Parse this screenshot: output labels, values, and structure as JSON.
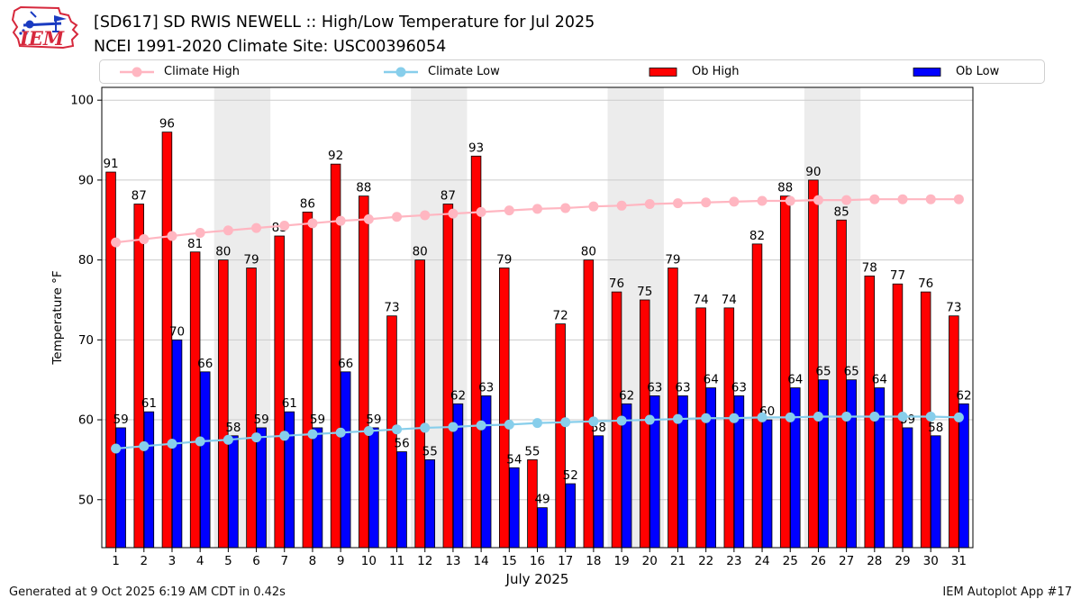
{
  "header": {
    "title_line1": "[SD617] SD RWIS NEWELL :: High/Low Temperature for Jul 2025",
    "title_line2": "NCEI 1991-2020 Climate Site: USC00396054",
    "logo_text": "IEM"
  },
  "legend": [
    {
      "label": "Climate High",
      "type": "line-marker",
      "color": "#ffb6c1"
    },
    {
      "label": "Climate Low",
      "type": "line-marker",
      "color": "#87ceeb"
    },
    {
      "label": "Ob High",
      "type": "swatch",
      "color": "#ff0000"
    },
    {
      "label": "Ob Low",
      "type": "swatch",
      "color": "#0000ff"
    }
  ],
  "chart_data": {
    "type": "bar",
    "title": "[SD617] SD RWIS NEWELL :: High/Low Temperature for Jul 2025",
    "subtitle": "NCEI 1991-2020 Climate Site: USC00396054",
    "xlabel": "July 2025",
    "ylabel": "Temperature °F",
    "ylim": [
      44,
      101.6
    ],
    "yticks": [
      50,
      60,
      70,
      80,
      90,
      100
    ],
    "grid": true,
    "legend_position": "top",
    "x": [
      1,
      2,
      3,
      4,
      5,
      6,
      7,
      8,
      9,
      10,
      11,
      12,
      13,
      14,
      15,
      16,
      17,
      18,
      19,
      20,
      21,
      22,
      23,
      24,
      25,
      26,
      27,
      28,
      29,
      30,
      31
    ],
    "series": [
      {
        "name": "Ob High",
        "type": "bar",
        "color": "#ff0000",
        "values": [
          91,
          87,
          96,
          81,
          80,
          79,
          83,
          86,
          92,
          88,
          73,
          80,
          87,
          93,
          79,
          55,
          72,
          80,
          76,
          75,
          79,
          74,
          74,
          82,
          88,
          90,
          85,
          78,
          77,
          76,
          73
        ]
      },
      {
        "name": "Ob Low",
        "type": "bar",
        "color": "#0000ff",
        "values": [
          59,
          61,
          70,
          66,
          58,
          59,
          61,
          59,
          66,
          59,
          56,
          55,
          62,
          63,
          54,
          49,
          52,
          58,
          62,
          63,
          63,
          64,
          63,
          60,
          64,
          65,
          65,
          64,
          59,
          58,
          62
        ]
      },
      {
        "name": "Climate High",
        "type": "line",
        "color": "#ffb6c1",
        "values": [
          82.2,
          82.6,
          83.0,
          83.4,
          83.7,
          84.0,
          84.3,
          84.6,
          84.9,
          85.1,
          85.4,
          85.6,
          85.8,
          86.0,
          86.2,
          86.4,
          86.5,
          86.7,
          86.8,
          87.0,
          87.1,
          87.2,
          87.3,
          87.4,
          87.4,
          87.5,
          87.5,
          87.6,
          87.6,
          87.6,
          87.6
        ]
      },
      {
        "name": "Climate Low",
        "type": "line",
        "color": "#87ceeb",
        "values": [
          56.4,
          56.7,
          57.0,
          57.3,
          57.5,
          57.8,
          58.0,
          58.2,
          58.4,
          58.6,
          58.8,
          59.0,
          59.1,
          59.3,
          59.4,
          59.6,
          59.7,
          59.8,
          59.9,
          60.0,
          60.1,
          60.2,
          60.2,
          60.3,
          60.3,
          60.4,
          60.4,
          60.4,
          60.4,
          60.4,
          60.3
        ]
      }
    ],
    "weekend_bands": [
      [
        5,
        6
      ],
      [
        12,
        13
      ],
      [
        19,
        20
      ],
      [
        26,
        27
      ]
    ],
    "colors": {
      "weekend_band": "#ececec",
      "grid": "#cccccc",
      "bar_edge": "#000000",
      "axis": "#000000"
    }
  },
  "footer": {
    "left": "Generated at 9 Oct 2025 6:19 AM CDT in 0.42s",
    "right": "IEM Autoplot App #17"
  }
}
